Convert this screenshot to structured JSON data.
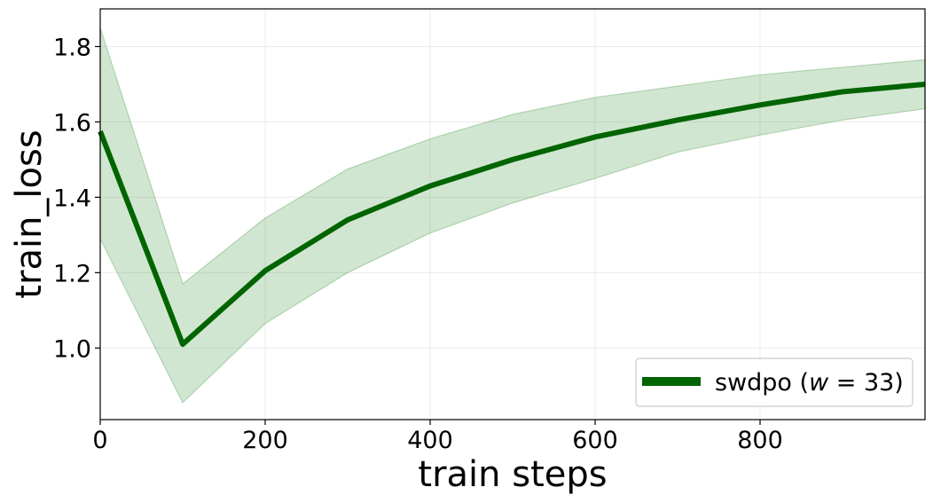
{
  "chart_data": {
    "type": "line",
    "xlabel": "train steps",
    "ylabel": "train_loss",
    "xlim": [
      0,
      1000
    ],
    "ylim": [
      0.81,
      1.9
    ],
    "xticks": [
      0,
      200,
      400,
      600,
      800
    ],
    "yticks": [
      1.0,
      1.2,
      1.4,
      1.6,
      1.8
    ],
    "xtick_labels": [
      "0",
      "200",
      "400",
      "600",
      "800"
    ],
    "ytick_labels": [
      "1.0",
      "1.2",
      "1.4",
      "1.6",
      "1.8"
    ],
    "grid": true,
    "legend_position": "lower-right",
    "legend_label_prefix": "swdpo (",
    "legend_label_var": "w",
    "legend_label_suffix": " = 33)",
    "series": [
      {
        "x": [
          0,
          100,
          200,
          300,
          400,
          500,
          600,
          700,
          800,
          900,
          1000
        ],
        "values": [
          1.575,
          1.01,
          1.205,
          1.34,
          1.43,
          1.5,
          1.56,
          1.605,
          1.645,
          1.68,
          1.7
        ],
        "upper": [
          1.85,
          1.17,
          1.345,
          1.475,
          1.555,
          1.62,
          1.665,
          1.695,
          1.725,
          1.745,
          1.765
        ],
        "lower": [
          1.29,
          0.855,
          1.065,
          1.2,
          1.305,
          1.385,
          1.45,
          1.52,
          1.565,
          1.605,
          1.635
        ],
        "color": "#006400",
        "band_color": "#2e8b2e"
      }
    ]
  }
}
